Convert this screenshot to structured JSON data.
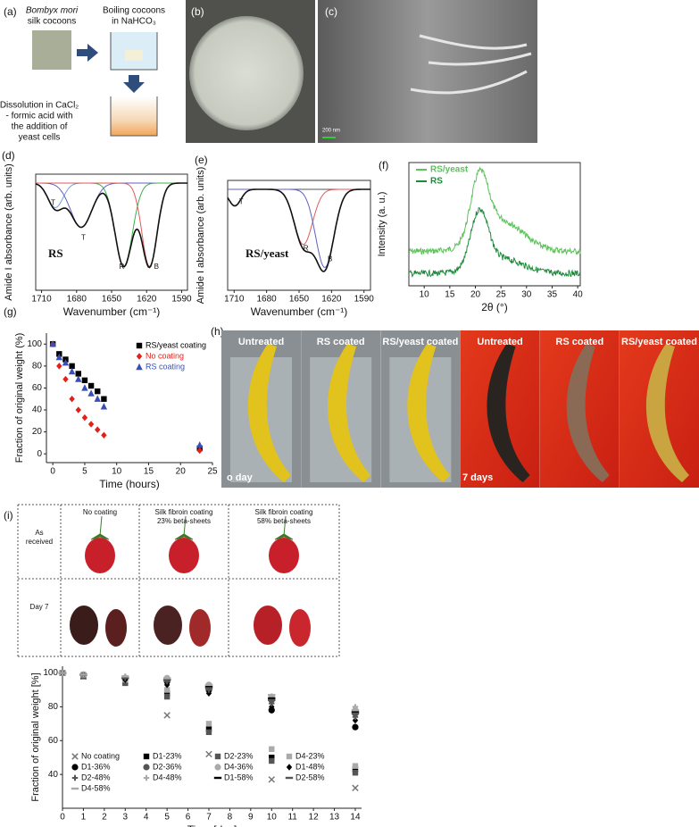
{
  "panels": {
    "a": {
      "label": "(a)",
      "species": "Bombyx mori",
      "step1": "silk cocoons",
      "step2": [
        "Boiling cocoons",
        "in NaHCO₃"
      ],
      "step3": [
        "Dissolution in CaCl₂",
        "- formic acid with",
        "the addition of",
        "yeast cells"
      ]
    },
    "b": {
      "label": "(b)"
    },
    "c": {
      "label": "(c)",
      "scale": "200 nm"
    },
    "h": {
      "label": "(h)",
      "photos": [
        "Untreated",
        "RS coated",
        "RS/yeast coated",
        "Untreated",
        "RS coated",
        "RS/yeast coated"
      ],
      "day0": "o day",
      "day7": "7 days"
    },
    "i": {
      "label": "(i)",
      "columns": [
        [
          "No coating"
        ],
        [
          "Silk fibroin coating",
          "23% beta-sheets"
        ],
        [
          "Silk fibroin coating",
          "58% beta-sheets"
        ]
      ],
      "rows": [
        [
          "As",
          "received"
        ],
        [
          "Day 7"
        ]
      ]
    }
  },
  "chart_data": [
    {
      "type": "spectrum",
      "label": "(d)",
      "xlabel": "Wavenumber (cm⁻¹)",
      "ylabel": "Amide I absorbance (arb. units)",
      "xlim": [
        1715,
        1585
      ],
      "xticks": [
        1710,
        1680,
        1650,
        1620,
        1590
      ],
      "sample": "RS",
      "peaks": [
        "T",
        "T",
        "R",
        "B"
      ]
    },
    {
      "type": "spectrum",
      "label": "(e)",
      "xlabel": "Wavenumber (cm⁻¹)",
      "ylabel": "Amide I absorbance (arb. units)",
      "xlim": [
        1716,
        1584
      ],
      "xticks": [
        1710,
        1680,
        1650,
        1620,
        1590
      ],
      "sample": "RS/yeast",
      "peaks": [
        "T",
        "R",
        "B"
      ]
    },
    {
      "type": "xrd",
      "label": "(f)",
      "xlabel": "2θ (°)",
      "ylabel": "Intensity (a. u.)",
      "xlim": [
        7,
        40.5
      ],
      "xticks": [
        10,
        15,
        20,
        25,
        30,
        35,
        40
      ],
      "series": [
        {
          "name": "RS/yeast",
          "color": "#5cc25a"
        },
        {
          "name": "RS",
          "color": "#1d8a3a"
        }
      ]
    },
    {
      "type": "scatter",
      "label": "(g)",
      "xlabel": "Time (hours)",
      "ylabel": "Fraction of original weight (%)",
      "xlim": [
        -1,
        25
      ],
      "ylim": [
        -8,
        110
      ],
      "xticks": [
        0,
        5,
        10,
        15,
        20,
        25
      ],
      "yticks": [
        0,
        20,
        40,
        60,
        80,
        100
      ],
      "legend": "upper right",
      "series": [
        {
          "name": "RS/yeast coating",
          "color": "#000000",
          "marker": "square",
          "x": [
            0,
            1,
            2,
            3,
            4,
            5,
            6,
            7,
            8,
            23
          ],
          "values": [
            100,
            91,
            86,
            80,
            73,
            67,
            62,
            57,
            50,
            5
          ]
        },
        {
          "name": "No coating",
          "color": "#e0211b",
          "marker": "diamond",
          "x": [
            0,
            1,
            2,
            3,
            4,
            5,
            6,
            7,
            8,
            23
          ],
          "values": [
            100,
            80,
            68,
            50,
            40,
            33,
            27,
            22,
            17,
            3
          ]
        },
        {
          "name": "RS coating",
          "color": "#3a4fb5",
          "marker": "triangle",
          "x": [
            0,
            1,
            2,
            3,
            4,
            5,
            6,
            7,
            8,
            23
          ],
          "values": [
            100,
            88,
            83,
            75,
            68,
            60,
            55,
            50,
            43,
            8
          ]
        }
      ]
    },
    {
      "type": "scatter",
      "label": "(i)",
      "xlabel": "Time [day]",
      "ylabel": "Fraction of original weight [%]",
      "xlim": [
        0,
        14.3
      ],
      "ylim": [
        20,
        104
      ],
      "xticks": [
        0,
        1,
        2,
        3,
        4,
        5,
        6,
        7,
        8,
        9,
        10,
        11,
        12,
        13,
        14
      ],
      "yticks": [
        40,
        60,
        80,
        100
      ],
      "legend": "lower center",
      "series": [
        {
          "name": "No coating",
          "color": "#777777",
          "marker": "cross",
          "x": [
            0,
            1,
            3,
            5,
            7,
            10,
            14
          ],
          "values": [
            100,
            98,
            95,
            75,
            52,
            37,
            32
          ]
        },
        {
          "name": "D1-23%",
          "color": "#000000",
          "marker": "square",
          "x": [
            0,
            1,
            3,
            5,
            7,
            10,
            14
          ],
          "values": [
            100,
            98,
            95,
            88,
            67,
            50,
            43
          ]
        },
        {
          "name": "D2-23%",
          "color": "#555555",
          "marker": "square",
          "x": [
            0,
            1,
            3,
            5,
            7,
            10,
            14
          ],
          "values": [
            100,
            98,
            94,
            86,
            65,
            48,
            41
          ]
        },
        {
          "name": "D4-23%",
          "color": "#aaaaaa",
          "marker": "square",
          "x": [
            0,
            1,
            3,
            5,
            7,
            10,
            14
          ],
          "values": [
            100,
            99,
            96,
            90,
            70,
            55,
            45
          ]
        },
        {
          "name": "D1-36%",
          "color": "#000000",
          "marker": "circle",
          "x": [
            0,
            1,
            3,
            5,
            7,
            10,
            14
          ],
          "values": [
            100,
            99,
            97,
            95,
            90,
            78,
            68
          ]
        },
        {
          "name": "D2-36%",
          "color": "#555555",
          "marker": "circle",
          "x": [
            0,
            1,
            3,
            5,
            7,
            10,
            14
          ],
          "values": [
            100,
            99,
            97,
            96,
            92,
            84,
            76
          ]
        },
        {
          "name": "D4-36%",
          "color": "#aaaaaa",
          "marker": "circle",
          "x": [
            0,
            1,
            3,
            5,
            7,
            10,
            14
          ],
          "values": [
            100,
            99,
            97,
            97,
            93,
            86,
            78
          ]
        },
        {
          "name": "D1-48%",
          "color": "#000000",
          "marker": "diamond",
          "x": [
            0,
            1,
            3,
            5,
            7,
            10,
            14
          ],
          "values": [
            100,
            99,
            96,
            93,
            88,
            80,
            72
          ]
        },
        {
          "name": "D2-48%",
          "color": "#555555",
          "marker": "plus",
          "x": [
            0,
            1,
            3,
            5,
            7,
            10,
            14
          ],
          "values": [
            100,
            99,
            97,
            95,
            90,
            82,
            74
          ]
        },
        {
          "name": "D4-48%",
          "color": "#aaaaaa",
          "marker": "plus",
          "x": [
            0,
            1,
            3,
            5,
            7,
            10,
            14
          ],
          "values": [
            100,
            99,
            98,
            97,
            93,
            86,
            80
          ]
        },
        {
          "name": "D1-58%",
          "color": "#000000",
          "marker": "dash",
          "x": [
            0,
            1,
            3,
            5,
            7,
            10,
            14
          ],
          "values": [
            100,
            99,
            97,
            96,
            92,
            85,
            77
          ]
        },
        {
          "name": "D2-58%",
          "color": "#555555",
          "marker": "dash",
          "x": [
            0,
            1,
            3,
            5,
            7,
            10,
            14
          ],
          "values": [
            100,
            99,
            97,
            96,
            91,
            84,
            76
          ]
        },
        {
          "name": "D4-58%",
          "color": "#aaaaaa",
          "marker": "dash",
          "x": [
            0,
            1,
            3,
            5,
            7,
            10,
            14
          ],
          "values": [
            100,
            99,
            98,
            97,
            93,
            87,
            78
          ]
        }
      ]
    }
  ]
}
